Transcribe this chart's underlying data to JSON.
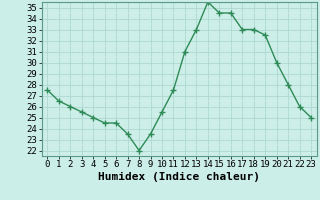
{
  "hours": [
    0,
    1,
    2,
    3,
    4,
    5,
    6,
    7,
    8,
    9,
    10,
    11,
    12,
    13,
    14,
    15,
    16,
    17,
    18,
    19,
    20,
    21,
    22,
    23
  ],
  "values": [
    27.5,
    26.5,
    26.0,
    25.5,
    25.0,
    24.5,
    24.5,
    23.5,
    22.0,
    23.5,
    25.5,
    27.5,
    31.0,
    33.0,
    35.5,
    34.5,
    34.5,
    33.0,
    33.0,
    32.5,
    30.0,
    28.0,
    26.0,
    25.0
  ],
  "xlabel": "Humidex (Indice chaleur)",
  "line_color": "#2e8b57",
  "marker": "+",
  "marker_size": 4,
  "bg_color": "#cceee8",
  "grid_major_color": "#b0d8d0",
  "grid_minor_color": "#d8eeea",
  "ylim": [
    22,
    35.5
  ],
  "yticks": [
    22,
    23,
    24,
    25,
    26,
    27,
    28,
    29,
    30,
    31,
    32,
    33,
    34,
    35
  ],
  "xlim": [
    -0.5,
    23.5
  ],
  "xtick_labels": [
    "0",
    "1",
    "2",
    "3",
    "4",
    "5",
    "6",
    "7",
    "8",
    "9",
    "10",
    "11",
    "12",
    "13",
    "14",
    "15",
    "16",
    "17",
    "18",
    "19",
    "20",
    "21",
    "22",
    "23"
  ],
  "tick_fontsize": 6.5,
  "xlabel_fontsize": 8,
  "linewidth": 1.0
}
